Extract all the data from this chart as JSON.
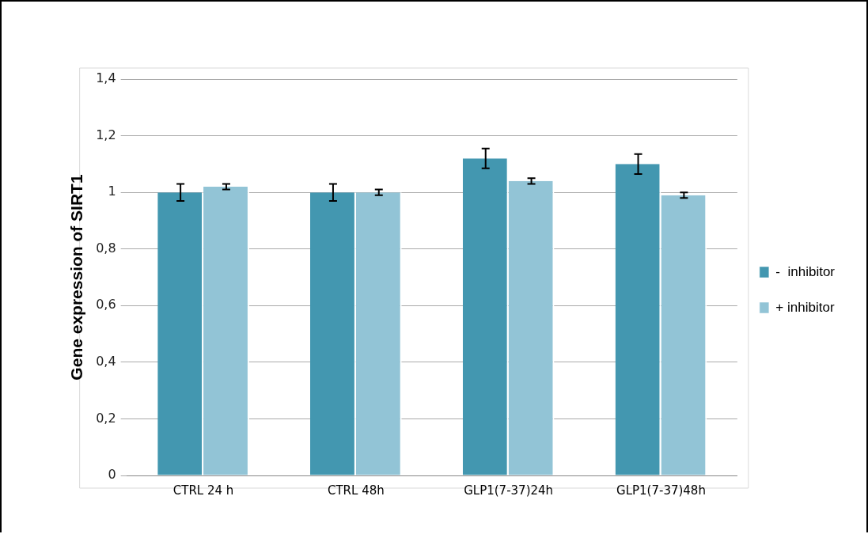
{
  "chart_data": {
    "type": "bar",
    "ylabel": "Gene expression of SIRT1",
    "categories": [
      "CTRL 24 h",
      "CTRL 48h",
      "GLP1(7-37)24h",
      "GLP1(7-37)48h"
    ],
    "series": [
      {
        "name": "-  inhibitor",
        "color": "#4397b0",
        "values": [
          1.0,
          1.0,
          1.12,
          1.1
        ],
        "errors": [
          0.03,
          0.03,
          0.035,
          0.035
        ]
      },
      {
        "name": "+ inhibitor",
        "color": "#92c4d6",
        "values": [
          1.02,
          1.0,
          1.04,
          0.99
        ],
        "errors": [
          0.01,
          0.01,
          0.01,
          0.01
        ]
      }
    ],
    "ylim": [
      0,
      1.4
    ],
    "yticks": [
      {
        "value": 0,
        "label": "0"
      },
      {
        "value": 0.2,
        "label": "0,2"
      },
      {
        "value": 0.4,
        "label": "0,4"
      },
      {
        "value": 0.6,
        "label": "0,6"
      },
      {
        "value": 0.8,
        "label": "0,8"
      },
      {
        "value": 1,
        "label": "1"
      },
      {
        "value": 1.2,
        "label": "1,2"
      },
      {
        "value": 1.4,
        "label": "1,4"
      }
    ],
    "grid": "y",
    "legend": "right"
  }
}
